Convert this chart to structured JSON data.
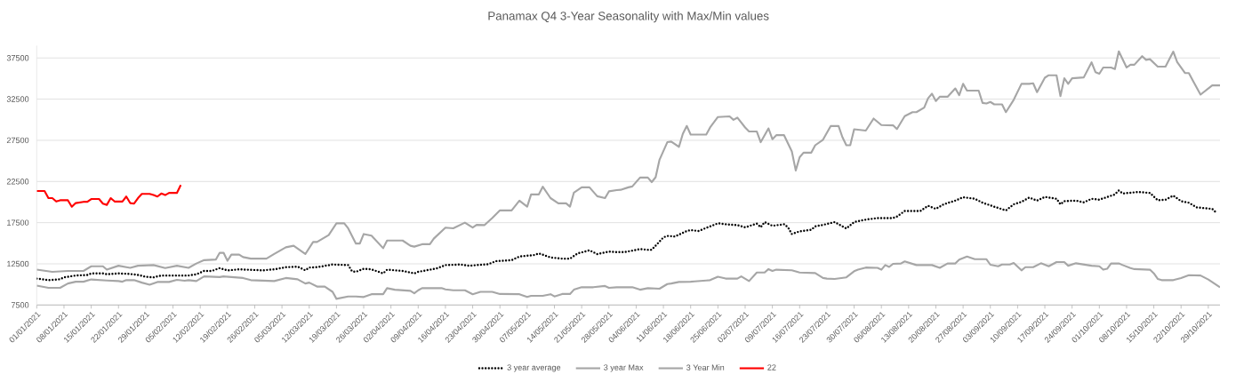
{
  "chart_data": {
    "type": "line",
    "title": "Panamax Q4 3-Year Seasonality with Max/Min values",
    "xlim": [
      "2021-01-01",
      "2021-11-01"
    ],
    "ylim": [
      7500,
      39000
    ],
    "yticks": [
      7500,
      12500,
      17500,
      22500,
      27500,
      32500,
      37500
    ],
    "xticks": [
      {
        "value": "2021-01-01",
        "label": "01/01/2021"
      },
      {
        "value": "2021-01-08",
        "label": "08/01/2021"
      },
      {
        "value": "2021-01-15",
        "label": "15/01/2021"
      },
      {
        "value": "2021-01-22",
        "label": "22/01/2021"
      },
      {
        "value": "2021-01-29",
        "label": "29/01/2021"
      },
      {
        "value": "2021-02-05",
        "label": "05/02/2021"
      },
      {
        "value": "2021-02-12",
        "label": "12/02/2021"
      },
      {
        "value": "2021-02-19",
        "label": "19/02/2021"
      },
      {
        "value": "2021-02-26",
        "label": "26/02/2021"
      },
      {
        "value": "2021-03-05",
        "label": "05/03/2021"
      },
      {
        "value": "2021-03-12",
        "label": "12/03/2021"
      },
      {
        "value": "2021-03-19",
        "label": "19/03/2021"
      },
      {
        "value": "2021-03-26",
        "label": "26/03/2021"
      },
      {
        "value": "2021-04-02",
        "label": "02/04/2021"
      },
      {
        "value": "2021-04-09",
        "label": "09/04/2021"
      },
      {
        "value": "2021-04-16",
        "label": "16/04/2021"
      },
      {
        "value": "2021-04-23",
        "label": "23/04/2021"
      },
      {
        "value": "2021-04-30",
        "label": "30/04/2021"
      },
      {
        "value": "2021-05-07",
        "label": "07/05/2021"
      },
      {
        "value": "2021-05-14",
        "label": "14/05/2021"
      },
      {
        "value": "2021-05-21",
        "label": "21/05/2021"
      },
      {
        "value": "2021-05-28",
        "label": "28/05/2021"
      },
      {
        "value": "2021-06-04",
        "label": "04/06/2021"
      },
      {
        "value": "2021-06-11",
        "label": "11/06/2021"
      },
      {
        "value": "2021-06-18",
        "label": "18/06/2021"
      },
      {
        "value": "2021-06-25",
        "label": "25/06/2021"
      },
      {
        "value": "2021-07-02",
        "label": "02/07/2021"
      },
      {
        "value": "2021-07-09",
        "label": "09/07/2021"
      },
      {
        "value": "2021-07-16",
        "label": "16/07/2021"
      },
      {
        "value": "2021-07-23",
        "label": "23/07/2021"
      },
      {
        "value": "2021-07-30",
        "label": "30/07/2021"
      },
      {
        "value": "2021-08-06",
        "label": "06/08/2021"
      },
      {
        "value": "2021-08-13",
        "label": "13/08/2021"
      },
      {
        "value": "2021-08-20",
        "label": "20/08/2021"
      },
      {
        "value": "2021-08-27",
        "label": "27/08/2021"
      },
      {
        "value": "2021-09-03",
        "label": "03/09/2021"
      },
      {
        "value": "2021-09-10",
        "label": "10/09/2021"
      },
      {
        "value": "2021-09-17",
        "label": "17/09/2021"
      },
      {
        "value": "2021-09-24",
        "label": "24/09/2021"
      },
      {
        "value": "2021-10-01",
        "label": "01/10/2021"
      },
      {
        "value": "2021-10-08",
        "label": "08/10/2021"
      },
      {
        "value": "2021-10-15",
        "label": "15/10/2021"
      },
      {
        "value": "2021-10-22",
        "label": "22/10/2021"
      },
      {
        "value": "2021-10-29",
        "label": "29/10/2021"
      }
    ],
    "grid": "y",
    "legend": "bottom",
    "marker": "none",
    "series": [
      {
        "name": "3 year average",
        "color": "#000000",
        "line_style": "dotted",
        "x": [
          "2021-01-01",
          "2021-01-04",
          "2021-01-07",
          "2021-01-08",
          "2021-01-11",
          "2021-01-14",
          "2021-01-15",
          "2021-01-18",
          "2021-01-19",
          "2021-01-22",
          "2021-01-25",
          "2021-01-27",
          "2021-01-29",
          "2021-01-31",
          "2021-02-02",
          "2021-02-09",
          "2021-02-11",
          "2021-02-13",
          "2021-02-15",
          "2021-02-17",
          "2021-02-19",
          "2021-02-22",
          "2021-02-28",
          "2021-03-03",
          "2021-03-06",
          "2021-03-09",
          "2021-03-11",
          "2021-03-12",
          "2021-03-14",
          "2021-03-18",
          "2021-03-22",
          "2021-03-23",
          "2021-03-24",
          "2021-03-26",
          "2021-03-28",
          "2021-03-31",
          "2021-04-01",
          "2021-04-05",
          "2021-04-07",
          "2021-04-08",
          "2021-04-09",
          "2021-04-12",
          "2021-04-14",
          "2021-04-16",
          "2021-04-20",
          "2021-04-22",
          "2021-04-27",
          "2021-04-29",
          "2021-05-03",
          "2021-05-05",
          "2021-05-09",
          "2021-05-10",
          "2021-05-13",
          "2021-05-16",
          "2021-05-18",
          "2021-05-20",
          "2021-05-23",
          "2021-05-25",
          "2021-05-28",
          "2021-05-30",
          "2021-06-01",
          "2021-06-05",
          "2021-06-07",
          "2021-06-08",
          "2021-06-11",
          "2021-06-12",
          "2021-06-14",
          "2021-06-17",
          "2021-06-18",
          "2021-06-20",
          "2021-06-22",
          "2021-06-25",
          "2021-06-27",
          "2021-06-30",
          "2021-07-02",
          "2021-07-05",
          "2021-07-06",
          "2021-07-07",
          "2021-07-09",
          "2021-07-12",
          "2021-07-13",
          "2021-07-14",
          "2021-07-16",
          "2021-07-19",
          "2021-07-20",
          "2021-07-22",
          "2021-07-25",
          "2021-07-28",
          "2021-07-30",
          "2021-08-02",
          "2021-08-05",
          "2021-08-09",
          "2021-08-10",
          "2021-08-12",
          "2021-08-16",
          "2021-08-18",
          "2021-08-20",
          "2021-08-22",
          "2021-08-25",
          "2021-08-27",
          "2021-08-30",
          "2021-09-01",
          "2021-09-04",
          "2021-09-07",
          "2021-09-09",
          "2021-09-11",
          "2021-09-13",
          "2021-09-15",
          "2021-09-17",
          "2021-09-20",
          "2021-09-21",
          "2021-09-22",
          "2021-09-25",
          "2021-09-27",
          "2021-09-29",
          "2021-10-01",
          "2021-10-05",
          "2021-10-06",
          "2021-10-07",
          "2021-10-11",
          "2021-10-14",
          "2021-10-16",
          "2021-10-18",
          "2021-10-20",
          "2021-10-22",
          "2021-10-24",
          "2021-10-26",
          "2021-10-30",
          "2021-10-31"
        ],
        "values": [
          10710,
          10520,
          10630,
          10860,
          11080,
          11150,
          11340,
          11340,
          11230,
          11340,
          11270,
          11150,
          10930,
          10860,
          11080,
          11080,
          11230,
          11640,
          11640,
          11980,
          11710,
          11830,
          11710,
          11830,
          12090,
          12160,
          11710,
          12050,
          12090,
          12420,
          12350,
          11600,
          11530,
          11900,
          11830,
          11340,
          11790,
          11640,
          11450,
          11340,
          11530,
          11790,
          11980,
          12350,
          12420,
          12270,
          12460,
          12830,
          12950,
          13390,
          13580,
          13770,
          13280,
          13130,
          13130,
          13770,
          14140,
          13690,
          13990,
          13920,
          13920,
          14290,
          14210,
          14210,
          15710,
          15890,
          15820,
          16490,
          16600,
          16490,
          16860,
          17420,
          17310,
          17200,
          16940,
          17380,
          16940,
          17570,
          17120,
          17310,
          16940,
          16120,
          16450,
          16640,
          17050,
          17230,
          17570,
          16790,
          17570,
          17870,
          18060,
          18060,
          18240,
          18910,
          18910,
          19550,
          19170,
          19730,
          20180,
          20590,
          20400,
          19920,
          19440,
          18990,
          19730,
          20030,
          20550,
          20180,
          20630,
          20400,
          19730,
          20110,
          20180,
          19960,
          20400,
          20290,
          20930,
          21410,
          21040,
          21230,
          21110,
          20220,
          20290,
          20780,
          20110,
          19920,
          19360,
          19170,
          18730
        ]
      },
      {
        "name": "3 year Max",
        "color": "#a6a6a6",
        "line_style": "solid",
        "x": [
          "2021-01-01",
          "2021-01-05",
          "2021-01-09",
          "2021-01-13",
          "2021-01-15",
          "2021-01-18",
          "2021-01-19",
          "2021-01-22",
          "2021-01-25",
          "2021-01-27",
          "2021-01-31",
          "2021-02-03",
          "2021-02-06",
          "2021-02-09",
          "2021-02-11",
          "2021-02-13",
          "2021-02-16",
          "2021-02-17",
          "2021-02-18",
          "2021-02-19",
          "2021-02-20",
          "2021-02-22",
          "2021-02-23",
          "2021-02-25",
          "2021-03-01",
          "2021-03-03",
          "2021-03-06",
          "2021-03-08",
          "2021-03-11",
          "2021-03-13",
          "2021-03-14",
          "2021-03-17",
          "2021-03-19",
          "2021-03-21",
          "2021-03-22",
          "2021-03-24",
          "2021-03-25",
          "2021-03-26",
          "2021-03-28",
          "2021-03-31",
          "2021-04-01",
          "2021-04-05",
          "2021-04-07",
          "2021-04-08",
          "2021-04-10",
          "2021-04-12",
          "2021-04-13",
          "2021-04-16",
          "2021-04-18",
          "2021-04-21",
          "2021-04-23",
          "2021-04-24",
          "2021-04-26",
          "2021-04-28",
          "2021-04-30",
          "2021-05-03",
          "2021-05-05",
          "2021-05-07",
          "2021-05-08",
          "2021-05-10",
          "2021-05-11",
          "2021-05-13",
          "2021-05-15",
          "2021-05-17",
          "2021-05-18",
          "2021-05-19",
          "2021-05-21",
          "2021-05-23",
          "2021-05-25",
          "2021-05-27",
          "2021-05-28",
          "2021-05-30",
          "2021-05-31",
          "2021-06-02",
          "2021-06-03",
          "2021-06-05",
          "2021-06-07",
          "2021-06-08",
          "2021-06-09",
          "2021-06-10",
          "2021-06-12",
          "2021-06-13",
          "2021-06-15",
          "2021-06-16",
          "2021-06-17",
          "2021-06-18",
          "2021-06-22",
          "2021-06-23",
          "2021-06-25",
          "2021-06-28",
          "2021-06-29",
          "2021-06-30",
          "2021-07-02",
          "2021-07-03",
          "2021-07-05",
          "2021-07-06",
          "2021-07-08",
          "2021-07-09",
          "2021-07-10",
          "2021-07-12",
          "2021-07-14",
          "2021-07-15",
          "2021-07-16",
          "2021-07-17",
          "2021-07-19",
          "2021-07-20",
          "2021-07-22",
          "2021-07-24",
          "2021-07-26",
          "2021-07-27",
          "2021-07-28",
          "2021-07-29",
          "2021-07-30",
          "2021-08-02",
          "2021-08-04",
          "2021-08-06",
          "2021-08-09",
          "2021-08-10",
          "2021-08-12",
          "2021-08-14",
          "2021-08-15",
          "2021-08-17",
          "2021-08-18",
          "2021-08-19",
          "2021-08-20",
          "2021-08-21",
          "2021-08-23",
          "2021-08-25",
          "2021-08-26",
          "2021-08-27",
          "2021-08-28",
          "2021-08-31",
          "2021-09-01",
          "2021-09-02",
          "2021-09-03",
          "2021-09-04",
          "2021-09-06",
          "2021-09-07",
          "2021-09-09",
          "2021-09-11",
          "2021-09-13",
          "2021-09-14",
          "2021-09-15",
          "2021-09-17",
          "2021-09-18",
          "2021-09-20",
          "2021-09-21",
          "2021-09-22",
          "2021-09-23",
          "2021-09-24",
          "2021-09-27",
          "2021-09-29",
          "2021-09-30",
          "2021-10-01",
          "2021-10-02",
          "2021-10-04",
          "2021-10-05",
          "2021-10-06",
          "2021-10-08",
          "2021-10-09",
          "2021-10-10",
          "2021-10-12",
          "2021-10-13",
          "2021-10-14",
          "2021-10-16",
          "2021-10-18",
          "2021-10-20",
          "2021-10-21",
          "2021-10-23",
          "2021-10-24",
          "2021-10-25",
          "2021-10-27",
          "2021-10-30",
          "2021-11-01"
        ],
        "values": [
          11790,
          11530,
          11640,
          11640,
          12200,
          12200,
          11790,
          12270,
          12010,
          12270,
          12350,
          11980,
          12270,
          12010,
          12540,
          12950,
          13020,
          13840,
          13840,
          12870,
          13620,
          13620,
          13320,
          13130,
          13130,
          13690,
          14510,
          14700,
          13690,
          15150,
          15150,
          16000,
          17420,
          17420,
          16820,
          14960,
          14960,
          16120,
          15930,
          14400,
          15330,
          15330,
          14700,
          14590,
          14880,
          14880,
          15560,
          16900,
          16820,
          17500,
          16900,
          17230,
          17200,
          18060,
          18990,
          18990,
          20180,
          19440,
          20930,
          20930,
          21860,
          20480,
          19850,
          19850,
          19440,
          21150,
          21790,
          21790,
          20710,
          20480,
          21300,
          21450,
          21490,
          21790,
          21900,
          22980,
          22980,
          22420,
          23020,
          25140,
          27270,
          27340,
          26710,
          28310,
          29240,
          28200,
          28200,
          29060,
          30330,
          30400,
          29990,
          30250,
          29060,
          28570,
          28570,
          27270,
          28950,
          27640,
          28120,
          28120,
          26150,
          23840,
          25440,
          26000,
          26000,
          26900,
          27570,
          29240,
          29240,
          27870,
          26900,
          26900,
          28840,
          28680,
          30140,
          29350,
          29320,
          28870,
          30440,
          30920,
          30920,
          31480,
          32600,
          33160,
          32270,
          32790,
          32790,
          33800,
          32980,
          34360,
          33540,
          33540,
          32040,
          31970,
          32160,
          31860,
          31860,
          30920,
          32420,
          34360,
          34360,
          34430,
          33350,
          35100,
          35400,
          35400,
          32870,
          35030,
          34360,
          35030,
          35140,
          36970,
          35780,
          35590,
          36340,
          36340,
          36150,
          38310,
          36340,
          36680,
          36680,
          37720,
          37270,
          37350,
          36450,
          36450,
          38270,
          37010,
          35670,
          35670,
          34770,
          33050,
          34170,
          34170
        ]
      },
      {
        "name": "3 Year Min",
        "color": "#a6a6a6",
        "line_style": "solid",
        "x": [
          "2021-01-01",
          "2021-01-04",
          "2021-01-07",
          "2021-01-09",
          "2021-01-11",
          "2021-01-13",
          "2021-01-15",
          "2021-01-19",
          "2021-01-22",
          "2021-01-23",
          "2021-01-24",
          "2021-01-26",
          "2021-01-28",
          "2021-01-30",
          "2021-02-01",
          "2021-02-04",
          "2021-02-06",
          "2021-02-08",
          "2021-02-09",
          "2021-02-11",
          "2021-02-13",
          "2021-02-17",
          "2021-02-18",
          "2021-02-23",
          "2021-02-25",
          "2021-03-03",
          "2021-03-06",
          "2021-03-09",
          "2021-03-11",
          "2021-03-12",
          "2021-03-14",
          "2021-03-16",
          "2021-03-18",
          "2021-03-19",
          "2021-03-22",
          "2021-03-24",
          "2021-03-26",
          "2021-03-28",
          "2021-03-31",
          "2021-04-01",
          "2021-04-03",
          "2021-04-07",
          "2021-04-08",
          "2021-04-09",
          "2021-04-10",
          "2021-04-15",
          "2021-04-16",
          "2021-04-18",
          "2021-04-21",
          "2021-04-23",
          "2021-04-25",
          "2021-04-28",
          "2021-04-30",
          "2021-05-05",
          "2021-05-07",
          "2021-05-08",
          "2021-05-11",
          "2021-05-13",
          "2021-05-14",
          "2021-05-16",
          "2021-05-18",
          "2021-05-19",
          "2021-05-21",
          "2021-05-24",
          "2021-05-27",
          "2021-05-28",
          "2021-05-30",
          "2021-05-31",
          "2021-06-03",
          "2021-06-05",
          "2021-06-07",
          "2021-06-10",
          "2021-06-12",
          "2021-06-13",
          "2021-06-15",
          "2021-06-18",
          "2021-06-19",
          "2021-06-22",
          "2021-06-23",
          "2021-06-25",
          "2021-06-27",
          "2021-06-30",
          "2021-07-01",
          "2021-07-03",
          "2021-07-05",
          "2021-07-07",
          "2021-07-08",
          "2021-07-09",
          "2021-07-10",
          "2021-07-14",
          "2021-07-16",
          "2021-07-20",
          "2021-07-22",
          "2021-07-23",
          "2021-07-25",
          "2021-07-28",
          "2021-07-30",
          "2021-07-31",
          "2021-08-02",
          "2021-08-05",
          "2021-08-06",
          "2021-08-07",
          "2021-08-08",
          "2021-08-09",
          "2021-08-11",
          "2021-08-12",
          "2021-08-15",
          "2021-08-19",
          "2021-08-21",
          "2021-08-23",
          "2021-08-25",
          "2021-08-26",
          "2021-08-28",
          "2021-08-30",
          "2021-09-02",
          "2021-09-03",
          "2021-09-05",
          "2021-09-06",
          "2021-09-08",
          "2021-09-09",
          "2021-09-11",
          "2021-09-12",
          "2021-09-13",
          "2021-09-14",
          "2021-09-16",
          "2021-09-18",
          "2021-09-20",
          "2021-09-22",
          "2021-09-23",
          "2021-09-25",
          "2021-09-29",
          "2021-10-01",
          "2021-10-02",
          "2021-10-03",
          "2021-10-04",
          "2021-10-06",
          "2021-10-07",
          "2021-10-09",
          "2021-10-10",
          "2021-10-14",
          "2021-10-15",
          "2021-10-16",
          "2021-10-17",
          "2021-10-20",
          "2021-10-22",
          "2021-10-24",
          "2021-10-27",
          "2021-10-29",
          "2021-11-01"
        ],
        "values": [
          9850,
          9590,
          9590,
          10110,
          10330,
          10330,
          10600,
          10480,
          10410,
          10330,
          10520,
          10520,
          10220,
          9960,
          10300,
          10300,
          10560,
          10450,
          10520,
          10410,
          10970,
          10890,
          10970,
          10780,
          10520,
          10410,
          10780,
          10630,
          10110,
          10220,
          9740,
          9740,
          9100,
          8250,
          8540,
          8540,
          8470,
          8810,
          8810,
          9550,
          9360,
          9220,
          8920,
          9290,
          9550,
          9550,
          9400,
          9290,
          9290,
          8810,
          9100,
          9100,
          8840,
          8810,
          8470,
          8620,
          8620,
          8810,
          8540,
          8840,
          8840,
          9360,
          9660,
          9660,
          9810,
          9590,
          9660,
          9660,
          9660,
          9360,
          9550,
          9480,
          10040,
          10110,
          10300,
          10330,
          10370,
          10480,
          10520,
          10930,
          10710,
          10710,
          10970,
          10410,
          11450,
          11450,
          11860,
          11640,
          11790,
          11720,
          11450,
          11380,
          10780,
          10710,
          10670,
          10860,
          11600,
          11790,
          12050,
          12010,
          11790,
          12350,
          12120,
          12500,
          12540,
          12800,
          12350,
          12350,
          12010,
          12540,
          12540,
          13020,
          13390,
          13060,
          13060,
          12390,
          12200,
          12420,
          12420,
          12610,
          11710,
          12090,
          12090,
          12090,
          12570,
          12200,
          12720,
          12720,
          12270,
          12570,
          12270,
          12200,
          11790,
          11900,
          12540,
          12540,
          12350,
          11980,
          11860,
          11790,
          11340,
          10670,
          10520,
          10520,
          10780,
          11120,
          11080,
          10600,
          9660
        ]
      },
      {
        "name": "22",
        "color": "#ff0000",
        "line_style": "solid",
        "x": [
          "2021-01-01",
          "2021-01-03",
          "2021-01-04",
          "2021-01-05",
          "2021-01-06",
          "2021-01-07",
          "2021-01-09",
          "2021-01-10",
          "2021-01-11",
          "2021-01-13",
          "2021-01-14",
          "2021-01-15",
          "2021-01-17",
          "2021-01-18",
          "2021-01-19",
          "2021-01-20",
          "2021-01-21",
          "2021-01-23",
          "2021-01-24",
          "2021-01-25",
          "2021-01-26",
          "2021-01-27",
          "2021-01-28",
          "2021-01-30",
          "2021-01-31",
          "2021-02-01",
          "2021-02-02",
          "2021-02-03",
          "2021-02-04",
          "2021-02-06",
          "2021-02-07"
        ],
        "values": [
          21340,
          21340,
          20480,
          20480,
          20070,
          20220,
          20220,
          19430,
          19880,
          20030,
          20030,
          20370,
          20370,
          19810,
          19660,
          20480,
          20070,
          20070,
          20670,
          19880,
          19810,
          20480,
          21000,
          21000,
          20850,
          20670,
          21040,
          20850,
          21110,
          21110,
          22080
        ]
      }
    ]
  }
}
